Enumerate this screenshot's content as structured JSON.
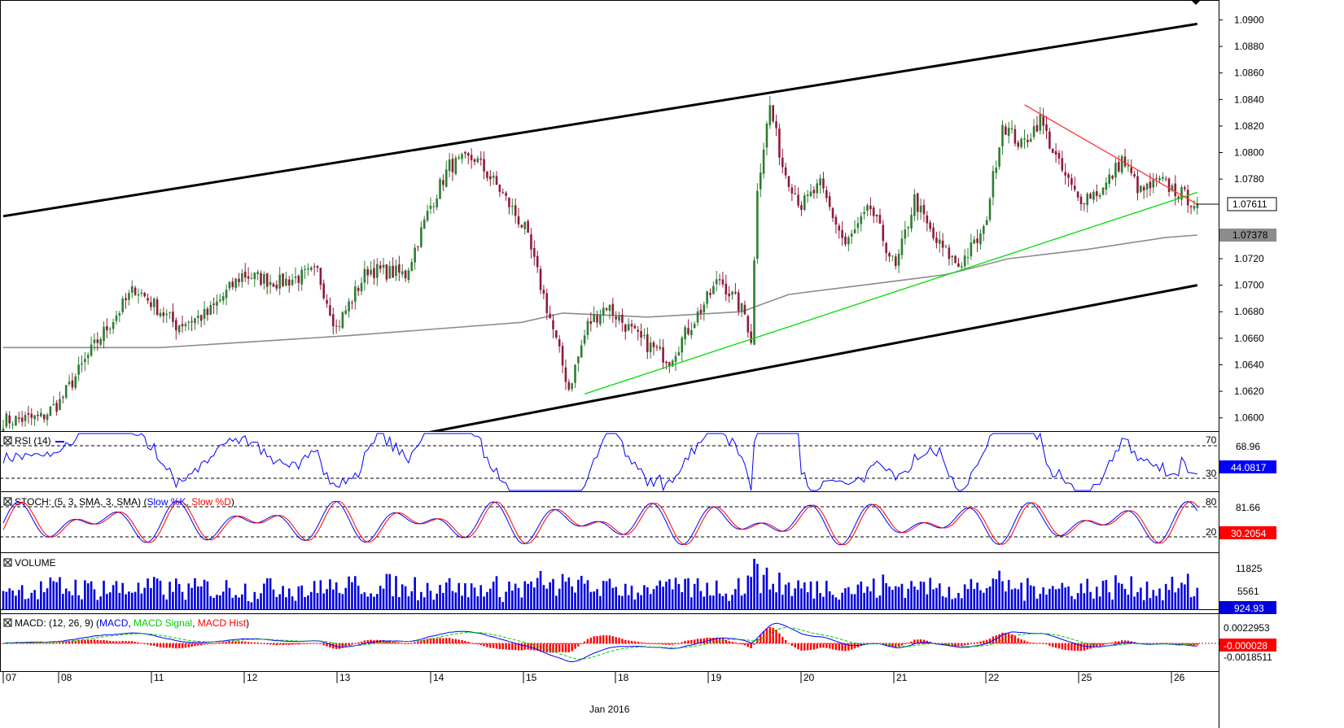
{
  "chart_data": {
    "type": "candlestick",
    "timeframe_note": "",
    "price_axis": {
      "ylim": [
        1.059,
        1.0915
      ],
      "ticks": [
        "1.0900",
        "1.0880",
        "1.0860",
        "1.0840",
        "1.0820",
        "1.0800",
        "1.0780",
        "1.0720",
        "1.0700",
        "1.0680",
        "1.0660",
        "1.0640",
        "1.0620",
        "1.0600"
      ],
      "current_price_tag": "1.07611",
      "ma_price_tag": "1.07378"
    },
    "x_axis": {
      "date_labels": [
        "07",
        "08",
        "11",
        "12",
        "13",
        "14",
        "15",
        "18",
        "19",
        "20",
        "21",
        "22",
        "25",
        "26"
      ],
      "month_label": "Jan 2016"
    },
    "ohlc_anchors": [
      {
        "i": 0,
        "c": 1.0598
      },
      {
        "i": 12,
        "c": 1.06
      },
      {
        "i": 18,
        "c": 1.0612
      },
      {
        "i": 30,
        "c": 1.0658
      },
      {
        "i": 42,
        "c": 1.0698
      },
      {
        "i": 55,
        "c": 1.067
      },
      {
        "i": 65,
        "c": 1.0678
      },
      {
        "i": 76,
        "c": 1.0708
      },
      {
        "i": 88,
        "c": 1.0702
      },
      {
        "i": 100,
        "c": 1.071
      },
      {
        "i": 106,
        "c": 1.0668
      },
      {
        "i": 116,
        "c": 1.0712
      },
      {
        "i": 128,
        "c": 1.0708
      },
      {
        "i": 136,
        "c": 1.076
      },
      {
        "i": 142,
        "c": 1.079
      },
      {
        "i": 150,
        "c": 1.0796
      },
      {
        "i": 158,
        "c": 1.0772
      },
      {
        "i": 166,
        "c": 1.0742
      },
      {
        "i": 174,
        "c": 1.0675
      },
      {
        "i": 180,
        "c": 1.0622
      },
      {
        "i": 186,
        "c": 1.067
      },
      {
        "i": 192,
        "c": 1.0685
      },
      {
        "i": 202,
        "c": 1.066
      },
      {
        "i": 212,
        "c": 1.0644
      },
      {
        "i": 222,
        "c": 1.0682
      },
      {
        "i": 228,
        "c": 1.0705
      },
      {
        "i": 236,
        "c": 1.0678
      },
      {
        "i": 238,
        "c": 1.066
      },
      {
        "i": 240,
        "c": 1.0775
      },
      {
        "i": 244,
        "c": 1.0835
      },
      {
        "i": 248,
        "c": 1.079
      },
      {
        "i": 254,
        "c": 1.076
      },
      {
        "i": 260,
        "c": 1.0775
      },
      {
        "i": 268,
        "c": 1.073
      },
      {
        "i": 276,
        "c": 1.0758
      },
      {
        "i": 284,
        "c": 1.0712
      },
      {
        "i": 290,
        "c": 1.0765
      },
      {
        "i": 296,
        "c": 1.0735
      },
      {
        "i": 304,
        "c": 1.0715
      },
      {
        "i": 312,
        "c": 1.074
      },
      {
        "i": 318,
        "c": 1.0822
      },
      {
        "i": 324,
        "c": 1.0805
      },
      {
        "i": 330,
        "c": 1.0825
      },
      {
        "i": 336,
        "c": 1.079
      },
      {
        "i": 342,
        "c": 1.0765
      },
      {
        "i": 350,
        "c": 1.0772
      },
      {
        "i": 356,
        "c": 1.0795
      },
      {
        "i": 362,
        "c": 1.077
      },
      {
        "i": 368,
        "c": 1.0778
      },
      {
        "i": 374,
        "c": 1.077
      },
      {
        "i": 380,
        "c": 1.0761
      }
    ],
    "ma_line": {
      "name": "",
      "points": [
        [
          0,
          1.0653
        ],
        [
          50,
          1.0653
        ],
        [
          110,
          1.0662
        ],
        [
          165,
          1.0672
        ],
        [
          178,
          1.0679
        ],
        [
          205,
          1.0676
        ],
        [
          235,
          1.068
        ],
        [
          250,
          1.0693
        ],
        [
          280,
          1.0702
        ],
        [
          300,
          1.0708
        ],
        [
          320,
          1.072
        ],
        [
          345,
          1.0727
        ],
        [
          370,
          1.0736
        ],
        [
          380,
          1.07378
        ]
      ]
    },
    "channel_lines": [
      {
        "color": "#000000",
        "from": [
          0,
          1.0752
        ],
        "to": [
          380,
          1.0897
        ]
      },
      {
        "color": "#000000",
        "from": [
          120,
          1.0582
        ],
        "to": [
          380,
          1.07
        ]
      },
      {
        "color": "#00dd00",
        "from": [
          185,
          1.0618
        ],
        "to": [
          380,
          1.077
        ]
      },
      {
        "color": "#ff3333",
        "from": [
          325,
          1.0836
        ],
        "to": [
          380,
          1.0761
        ]
      }
    ],
    "indicators": [
      {
        "name": "RSI (14)",
        "levels": [
          "70",
          "30"
        ],
        "right_ticks": [
          "68.96"
        ],
        "value_tag": "44.0817",
        "color": "#0000ff"
      },
      {
        "name": "STOCH (5, 3, SMA, 3, SMA)",
        "legend": [
          "Slow %K",
          "Slow %D"
        ],
        "levels": [
          "80",
          "20"
        ],
        "right_ticks": [
          "81.66"
        ],
        "value_tag": "30.2054",
        "colors": [
          "#0000ff",
          "#ff0000"
        ]
      },
      {
        "name": "VOLUME",
        "right_ticks": [
          "11825",
          "5561"
        ],
        "value_tag": "924.93",
        "color": "#0000dd"
      },
      {
        "name": "MACD (12, 26, 9)",
        "legend": [
          "MACD",
          "MACD Signal",
          "MACD Hist"
        ],
        "right_ticks": [
          "0.0022953",
          "-0.0018511"
        ],
        "value_tag": "-0.000028",
        "colors": [
          "#0000ff",
          "#00cc00",
          "#ff0000"
        ]
      }
    ]
  },
  "ui": {
    "macd_prefix": "MACD: (12, 26, 9) (",
    "sep": ", ",
    "close_paren": ")",
    "stoch_prefix": "STOCH: (5, 3, SMA, 3, SMA) (",
    "colors": {
      "up": "#2e7d32",
      "down": "#8e1b3a",
      "blue": "#0000ff",
      "grid": "#000000"
    }
  }
}
